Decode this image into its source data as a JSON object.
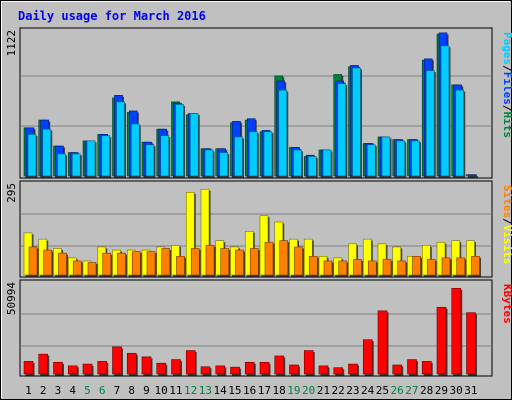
{
  "chart_data": [
    {
      "type": "bar",
      "title": "Daily usage for March 2016",
      "panel": "hits-files-pages",
      "ylabel_parts": [
        {
          "text": "Pages",
          "color": "#00ccff"
        },
        {
          "text": "Files",
          "color": "#0040ff"
        },
        {
          "text": "Hits",
          "color": "#008040"
        }
      ],
      "ymax_label": "1122",
      "ylim": [
        0,
        1122
      ],
      "categories": [
        "1",
        "2",
        "3",
        "4",
        "5",
        "6",
        "7",
        "8",
        "9",
        "10",
        "11",
        "12",
        "13",
        "14",
        "15",
        "16",
        "17",
        "18",
        "19",
        "20",
        "21",
        "22",
        "23",
        "24",
        "25",
        "26",
        "27",
        "28",
        "29",
        "30",
        "31"
      ],
      "weekend_days": [
        "5",
        "6",
        "12",
        "13",
        "19",
        "20",
        "26",
        "27"
      ],
      "series": [
        {
          "name": "Hits",
          "color": "#008040",
          "values": [
            370,
            430,
            230,
            180,
            270,
            320,
            600,
            490,
            260,
            360,
            570,
            470,
            210,
            210,
            410,
            430,
            340,
            770,
            220,
            150,
            200,
            780,
            840,
            250,
            300,
            280,
            280,
            890,
            1090,
            700,
            10
          ]
        },
        {
          "name": "Files",
          "color": "#0040ff",
          "values": [
            370,
            430,
            230,
            180,
            270,
            320,
            620,
            500,
            260,
            360,
            560,
            480,
            210,
            210,
            420,
            440,
            350,
            730,
            220,
            160,
            200,
            730,
            850,
            250,
            300,
            280,
            280,
            900,
            1100,
            700,
            10
          ]
        },
        {
          "name": "Pages",
          "color": "#00ccff",
          "values": [
            320,
            360,
            170,
            170,
            270,
            310,
            570,
            400,
            240,
            310,
            550,
            480,
            200,
            180,
            300,
            340,
            340,
            660,
            200,
            150,
            200,
            710,
            830,
            240,
            300,
            270,
            270,
            810,
            1000,
            660,
            0
          ]
        }
      ]
    },
    {
      "type": "bar",
      "panel": "sites-visits",
      "ylabel_parts": [
        {
          "text": "Sites",
          "color": "#ff8000"
        },
        {
          "text": "Visits",
          "color": "#ffff00"
        }
      ],
      "ymax_label": "295",
      "ylim": [
        0,
        295
      ],
      "categories": [
        "1",
        "2",
        "3",
        "4",
        "5",
        "6",
        "7",
        "8",
        "9",
        "10",
        "11",
        "12",
        "13",
        "14",
        "15",
        "16",
        "17",
        "18",
        "19",
        "20",
        "21",
        "22",
        "23",
        "24",
        "25",
        "26",
        "27",
        "28",
        "29",
        "30",
        "31"
      ],
      "series": [
        {
          "name": "Visits",
          "color": "#ffff00",
          "values": [
            135,
            115,
            85,
            55,
            45,
            90,
            80,
            80,
            80,
            90,
            95,
            265,
            275,
            110,
            90,
            140,
            190,
            170,
            115,
            115,
            60,
            55,
            100,
            115,
            100,
            90,
            60,
            95,
            105,
            110,
            110
          ]
        },
        {
          "name": "Sites",
          "color": "#ff8000",
          "values": [
            90,
            80,
            70,
            45,
            40,
            70,
            70,
            75,
            75,
            85,
            60,
            85,
            95,
            85,
            80,
            85,
            105,
            110,
            90,
            60,
            45,
            45,
            50,
            45,
            50,
            45,
            60,
            50,
            55,
            55,
            60
          ]
        }
      ]
    },
    {
      "type": "bar",
      "panel": "kbytes",
      "ylabel_parts": [
        {
          "text": "KBytes",
          "color": "#ff0000"
        }
      ],
      "ymax_label": "50994",
      "ylim": [
        0,
        50994
      ],
      "categories": [
        "1",
        "2",
        "3",
        "4",
        "5",
        "6",
        "7",
        "8",
        "9",
        "10",
        "11",
        "12",
        "13",
        "14",
        "15",
        "16",
        "17",
        "18",
        "19",
        "20",
        "21",
        "22",
        "23",
        "24",
        "25",
        "26",
        "27",
        "28",
        "29",
        "30",
        "31"
      ],
      "series": [
        {
          "name": "KBytes",
          "color": "#ff0000",
          "values": [
            7000,
            11000,
            6500,
            4500,
            5500,
            7000,
            15000,
            11500,
            9500,
            6000,
            8000,
            13000,
            4000,
            4500,
            3800,
            6500,
            6500,
            10000,
            5000,
            13000,
            4500,
            3500,
            5500,
            19000,
            35000,
            5000,
            8000,
            7000,
            37000,
            47500,
            34000
          ]
        }
      ]
    }
  ]
}
